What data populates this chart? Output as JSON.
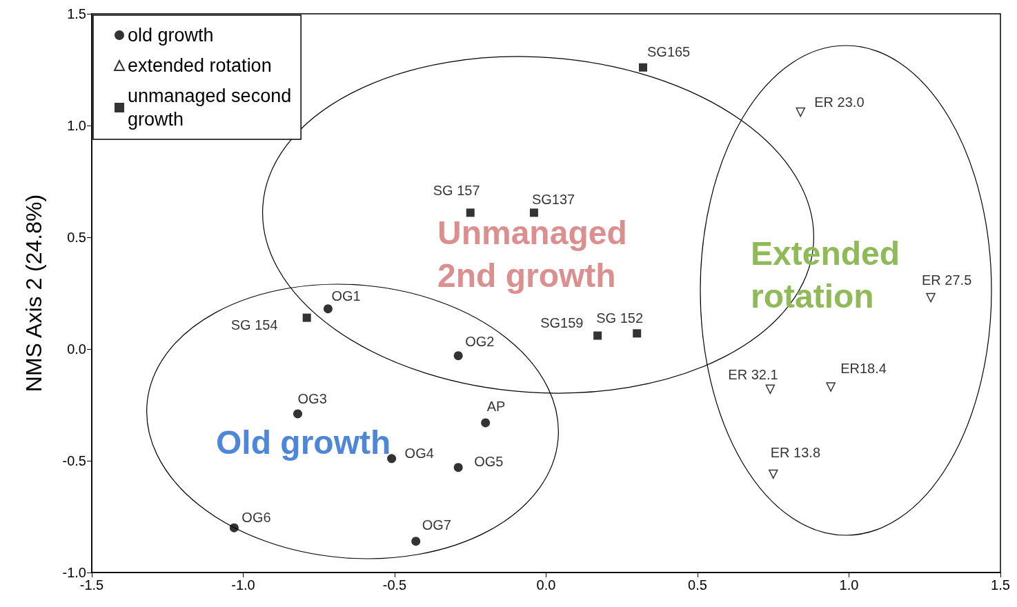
{
  "chart_data": {
    "type": "scatter",
    "ylabel": "NMS Axis 2 (24.8%)",
    "xlim": [
      -1.5,
      1.5
    ],
    "xticks": [
      {
        "value": -1.5,
        "label": "-1.5"
      },
      {
        "value": -1,
        "label": "-1.0"
      },
      {
        "value": -0.5,
        "label": "-0.5"
      },
      {
        "value": 0,
        "label": "0.0"
      },
      {
        "value": 0.5,
        "label": "0.5"
      },
      {
        "value": 1,
        "label": "1.0"
      },
      {
        "value": 1.5,
        "label": "1.5"
      }
    ],
    "ylim": [
      -1,
      1.5
    ],
    "yticks": [
      {
        "value": -1,
        "label": "-1.0"
      },
      {
        "value": -0.5,
        "label": "-0.5"
      },
      {
        "value": 0,
        "label": "0.0"
      },
      {
        "value": 0.5,
        "label": "0.5"
      },
      {
        "value": 1,
        "label": "1.0"
      },
      {
        "value": 1.5,
        "label": "1.5"
      }
    ],
    "grid": false,
    "legend": "top left",
    "series": [
      {
        "name": "old growth",
        "color": "#000000",
        "marker": "circle",
        "x": [
          -0.72,
          -0.29,
          -0.82,
          -0.2,
          -0.51,
          -0.29,
          -1.03,
          -0.43
        ],
        "values": [
          0.18,
          -0.03,
          -0.29,
          -0.33,
          -0.49,
          -0.53,
          -0.8,
          -0.86
        ]
      },
      {
        "name": "extended rotation",
        "color": "#000000",
        "marker": "triangle",
        "x": [
          0.84,
          1.27,
          0.74,
          0.94,
          0.75
        ],
        "values": [
          1.06,
          0.23,
          -0.18,
          -0.17,
          -0.56
        ]
      },
      {
        "name": "unmanaged second growth",
        "color": "#000000",
        "marker": "square",
        "x": [
          0.32,
          -0.25,
          -0.04,
          -0.79,
          0.17,
          0.3
        ],
        "values": [
          1.26,
          0.61,
          0.61,
          0.14,
          0.06,
          0.07
        ]
      }
    ],
    "annotations": [
      "Unmanaged 2nd growth",
      "Old growth",
      "Extended rotation",
      {
        "text": "OG1",
        "x": -0.72,
        "y": 0.18
      },
      {
        "text": "OG2",
        "x": -0.29,
        "y": -0.03
      },
      {
        "text": "OG3",
        "x": -0.82,
        "y": -0.29
      },
      {
        "text": "AP",
        "x": -0.2,
        "y": -0.33
      },
      {
        "text": "OG4",
        "x": -0.51,
        "y": -0.49
      },
      {
        "text": "OG5",
        "x": -0.29,
        "y": -0.53
      },
      {
        "text": "OG6",
        "x": -1.03,
        "y": -0.8
      },
      {
        "text": "OG7",
        "x": -0.43,
        "y": -0.86
      },
      {
        "text": "ER 23.0",
        "x": 0.84,
        "y": 1.06
      },
      {
        "text": "ER 27.5",
        "x": 1.27,
        "y": 0.23
      },
      {
        "text": "ER 32.1",
        "x": 0.74,
        "y": -0.18
      },
      {
        "text": "ER18.4",
        "x": 0.94,
        "y": -0.17
      },
      {
        "text": "ER 13.8",
        "x": 0.75,
        "y": -0.56
      },
      {
        "text": "SG165",
        "x": 0.32,
        "y": 1.26
      },
      {
        "text": "SG 157",
        "x": -0.25,
        "y": 0.61
      },
      {
        "text": "SG137",
        "x": -0.04,
        "y": 0.61
      },
      {
        "text": "SG 154",
        "x": -0.79,
        "y": 0.14
      },
      {
        "text": "SG159",
        "x": 0.17,
        "y": 0.06
      },
      {
        "text": "SG 152",
        "x": 0.3,
        "y": 0.07
      }
    ]
  }
}
